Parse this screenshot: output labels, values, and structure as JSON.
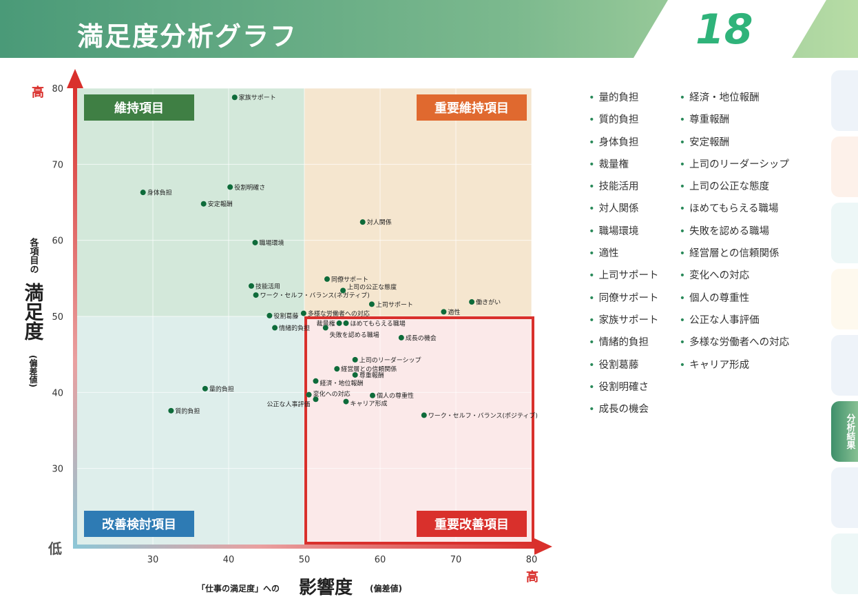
{
  "header": {
    "title": "満足度分析グラフ",
    "page_number": "18"
  },
  "side_tabs": {
    "active": "分析結果"
  },
  "legend": {
    "left": [
      "量的負担",
      "質的負担",
      "身体負担",
      "裁量権",
      "技能活用",
      "対人関係",
      "職場環境",
      "適性",
      "上司サポート",
      "同僚サポート",
      "家族サポート",
      "情緒的負担",
      "役割葛藤",
      "役割明確さ",
      "成長の機会"
    ],
    "right": [
      "経済・地位報酬",
      "尊重報酬",
      "安定報酬",
      "上司のリーダーシップ",
      "上司の公正な態度",
      "ほめてもらえる職場",
      "失敗を認める職場",
      "経営層との信頼関係",
      "変化への対応",
      "個人の尊重性",
      "公正な人事評価",
      "多様な労働者への対応",
      "キャリア形成"
    ]
  },
  "colors": {
    "point": "#0e6b3a",
    "maintain": "#3f7f44",
    "important_maintain": "#e0692f",
    "improve": "#2e7bb4",
    "important_improve": "#d9302c"
  },
  "chart_data": {
    "type": "scatter",
    "xlim": [
      20,
      80
    ],
    "ylim": [
      20,
      80
    ],
    "xticks": [
      30,
      40,
      50,
      60,
      70,
      80
    ],
    "yticks": [
      30,
      40,
      50,
      60,
      70,
      80
    ],
    "grid": true,
    "divider": {
      "x": 50,
      "y": 50
    },
    "xlabel": {
      "prefix": "「仕事の満足度」への",
      "main": "影響度",
      "suffix": "(偏差値)",
      "high": "高"
    },
    "ylabel": {
      "prefix": "各項目の",
      "main": "満足度",
      "suffix": "(偏差値)",
      "high": "高",
      "low": "低"
    },
    "quadrants": {
      "top_left": "維持項目",
      "top_right": "重要維持項目",
      "bottom_left": "改善検討項目",
      "bottom_right": "重要改善項目"
    },
    "points": [
      {
        "label": "家族サポート",
        "x": 40.8,
        "y": 78.8
      },
      {
        "label": "身体負担",
        "x": 28.7,
        "y": 66.3
      },
      {
        "label": "役割明確さ",
        "x": 40.2,
        "y": 67.0
      },
      {
        "label": "安定報酬",
        "x": 36.7,
        "y": 64.8
      },
      {
        "label": "対人関係",
        "x": 57.7,
        "y": 62.4
      },
      {
        "label": "職場環境",
        "x": 43.5,
        "y": 59.7
      },
      {
        "label": "同僚サポート",
        "x": 53.0,
        "y": 54.9
      },
      {
        "label": "技能活用",
        "x": 43.0,
        "y": 54.0
      },
      {
        "label": "上司の公正な態度",
        "x": 55.1,
        "y": 53.4
      },
      {
        "label": "ワーク・セルフ・バランス(ネガティブ)",
        "x": 43.6,
        "y": 52.8
      },
      {
        "label": "上司サポート",
        "x": 58.9,
        "y": 51.6
      },
      {
        "label": "働きがい",
        "x": 72.1,
        "y": 51.9
      },
      {
        "label": "適性",
        "x": 68.4,
        "y": 50.6
      },
      {
        "label": "役割葛藤",
        "x": 45.4,
        "y": 50.1
      },
      {
        "label": "多様な労働者への対応",
        "x": 49.9,
        "y": 50.4
      },
      {
        "label": "裁量権",
        "x": 54.6,
        "y": 49.1
      },
      {
        "label": "ほめてもらえる職場",
        "x": 55.5,
        "y": 49.1
      },
      {
        "label": "情緒的負担",
        "x": 46.1,
        "y": 48.5
      },
      {
        "label": "失敗を認める職場",
        "x": 52.8,
        "y": 48.5
      },
      {
        "label": "成長の機会",
        "x": 62.8,
        "y": 47.2
      },
      {
        "label": "上司のリーダーシップ",
        "x": 56.7,
        "y": 44.3
      },
      {
        "label": "経営層との信頼関係",
        "x": 54.3,
        "y": 43.1
      },
      {
        "label": "尊重報酬",
        "x": 56.7,
        "y": 42.3
      },
      {
        "label": "経済・地位報酬",
        "x": 51.5,
        "y": 41.5
      },
      {
        "label": "変化への対応",
        "x": 50.6,
        "y": 39.7
      },
      {
        "label": "個人の尊重性",
        "x": 59.0,
        "y": 39.6
      },
      {
        "label": "公正な人事評価",
        "x": 51.5,
        "y": 39.1
      },
      {
        "label": "キャリア形成",
        "x": 55.5,
        "y": 38.8
      },
      {
        "label": "ワーク・セルフ・バランス(ポジティブ)",
        "x": 65.8,
        "y": 37.0
      },
      {
        "label": "量的負担",
        "x": 36.9,
        "y": 40.5
      },
      {
        "label": "質的負担",
        "x": 32.4,
        "y": 37.6
      }
    ]
  }
}
